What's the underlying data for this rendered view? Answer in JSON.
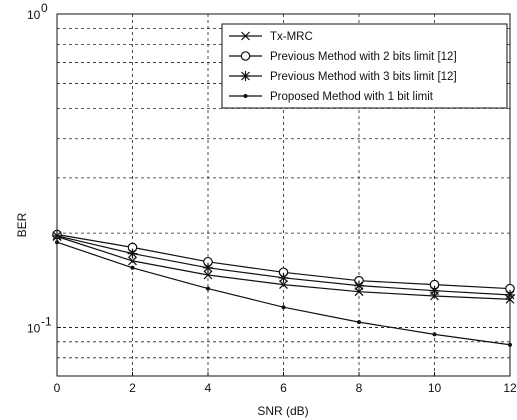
{
  "chart_data": {
    "type": "line",
    "title": "",
    "xlabel": "SNR (dB)",
    "ylabel": "BER",
    "x": [
      0,
      2,
      4,
      6,
      8,
      10,
      12
    ],
    "xlim": [
      0,
      12
    ],
    "ylim": [
      0.07,
      1
    ],
    "yscale": "log",
    "grid": true,
    "legend_position": "top-right",
    "x_ticks": [
      "0",
      "2",
      "4",
      "6",
      "8",
      "10",
      "12"
    ],
    "y_tick_labels": [
      {
        "base": "10",
        "exp": "-1",
        "value": 0.1
      },
      {
        "base": "10",
        "exp": "0",
        "value": 1
      }
    ],
    "series": [
      {
        "name": "Tx-MRC",
        "marker": "x",
        "values": [
          0.195,
          0.163,
          0.147,
          0.137,
          0.13,
          0.126,
          0.123
        ]
      },
      {
        "name": "Previous Method with 2 bits limit [12]",
        "marker": "circle",
        "values": [
          0.198,
          0.18,
          0.162,
          0.15,
          0.141,
          0.137,
          0.133
        ]
      },
      {
        "name": "Previous Method with 3 bits limit [12]",
        "marker": "star",
        "values": [
          0.196,
          0.172,
          0.155,
          0.144,
          0.136,
          0.131,
          0.127
        ]
      },
      {
        "name": "Proposed Method with 1 bit limit",
        "marker": "dot",
        "values": [
          0.187,
          0.155,
          0.133,
          0.116,
          0.104,
          0.095,
          0.088
        ]
      }
    ]
  }
}
